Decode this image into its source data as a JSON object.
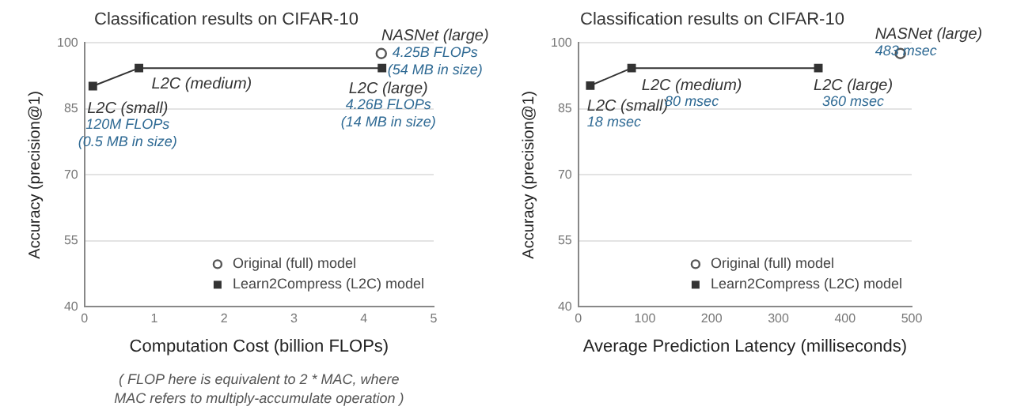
{
  "chart_data": [
    {
      "type": "scatter",
      "title": "Classification results on CIFAR-10",
      "xlabel": "Computation Cost (billion FLOPs)",
      "ylabel": "Accuracy (precision@1)",
      "xlim": [
        0,
        5
      ],
      "xticks": [
        0,
        1,
        2,
        3,
        4,
        5
      ],
      "ylim": [
        40,
        100
      ],
      "yticks": [
        40,
        55,
        70,
        85,
        100
      ],
      "grid": "y",
      "legend": "bottom right",
      "series": [
        {
          "name": "Original (full) model",
          "type": "scatter",
          "marker": "circle",
          "color": "#555555",
          "x": [
            4.25
          ],
          "values": [
            97.6
          ]
        },
        {
          "name": "Learn2Compress (L2C) model",
          "type": "line",
          "marker": "square",
          "color": "#333333",
          "x": [
            0.12,
            0.78,
            4.26
          ],
          "values": [
            90.2,
            94.3,
            94.3
          ]
        }
      ],
      "annotations": [
        {
          "text": "L2C (small)\n120M FLOPs\n(0.5 MB in size)",
          "x": 0.12,
          "y": 90.2
        },
        {
          "text": "L2C (medium)",
          "x": 0.78,
          "y": 94.3
        },
        {
          "text": "L2C (large)\n4.26B FLOPs\n(14 MB in size)",
          "x": 4.26,
          "y": 94.3
        },
        {
          "text": "NASNet (large)\n4.25B FLOPs\n(54 MB in size)",
          "x": 4.25,
          "y": 97.6
        },
        "( FLOP here is equivalent to 2 * MAC, where\nMAC refers to multiply-accumulate operation )"
      ]
    },
    {
      "type": "scatter",
      "title": "Classification results on CIFAR-10",
      "xlabel": "Average Prediction Latency (milliseconds)",
      "ylabel": "Accuracy (precision@1)",
      "xlim": [
        0,
        500
      ],
      "xticks": [
        0,
        100,
        200,
        300,
        400,
        500
      ],
      "ylim": [
        40,
        100
      ],
      "yticks": [
        40,
        55,
        70,
        85,
        100
      ],
      "grid": "y",
      "legend": "bottom right",
      "series": [
        {
          "name": "Original (full) model",
          "type": "scatter",
          "marker": "circle",
          "color": "#555555",
          "x": [
            483
          ],
          "values": [
            97.6
          ]
        },
        {
          "name": "Learn2Compress (L2C) model",
          "type": "line",
          "marker": "square",
          "color": "#333333",
          "x": [
            18,
            80,
            360
          ],
          "values": [
            90.3,
            94.3,
            94.3
          ]
        }
      ],
      "annotations": [
        {
          "text": "L2C (small)\n18 msec",
          "x": 18,
          "y": 90.3
        },
        {
          "text": "L2C (medium)\n80 msec",
          "x": 80,
          "y": 94.3
        },
        {
          "text": "L2C (large)\n360 msec",
          "x": 360,
          "y": 94.3
        },
        {
          "text": "NASNet (large)\n483 msec",
          "x": 483,
          "y": 97.6
        }
      ]
    }
  ]
}
